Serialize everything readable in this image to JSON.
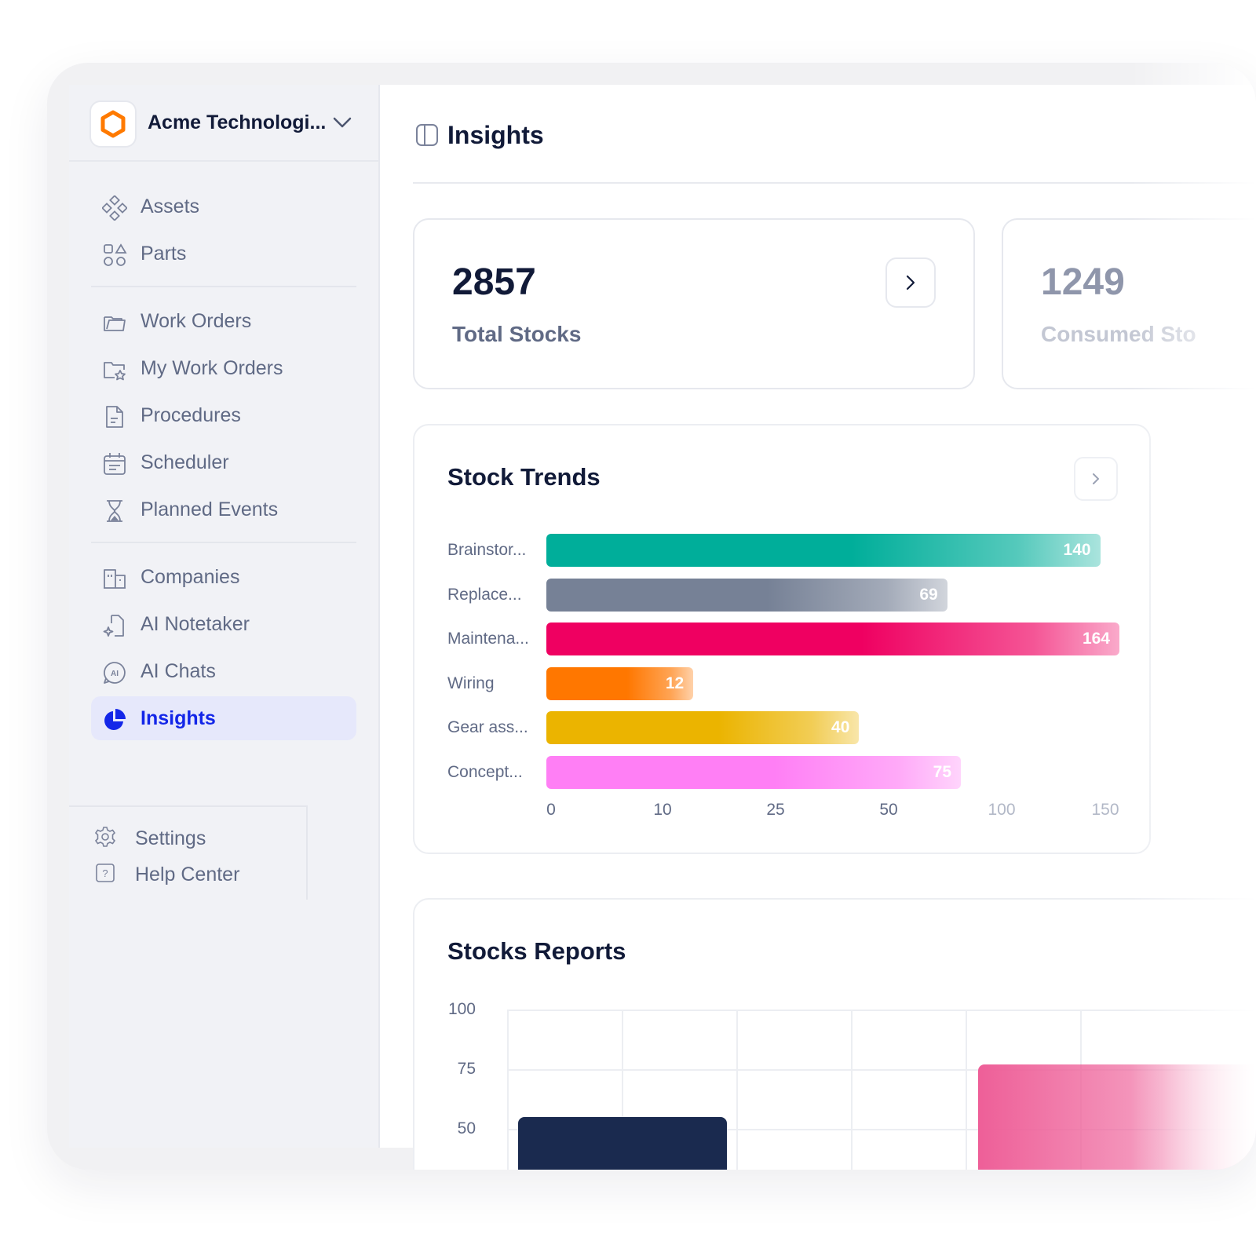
{
  "org": {
    "name": "Acme Technologi...",
    "logo_color": "#ff7a00"
  },
  "nav": {
    "group1": [
      {
        "label": "Assets",
        "icon": "diamond-grid-icon"
      },
      {
        "label": "Parts",
        "icon": "shapes-icon"
      }
    ],
    "group2": [
      {
        "label": "Work Orders",
        "icon": "folder-icon"
      },
      {
        "label": "My Work Orders",
        "icon": "folder-star-icon"
      },
      {
        "label": "Procedures",
        "icon": "document-icon"
      },
      {
        "label": "Scheduler",
        "icon": "calendar-icon"
      },
      {
        "label": "Planned Events",
        "icon": "hourglass-icon"
      }
    ],
    "group3": [
      {
        "label": "Companies",
        "icon": "building-icon"
      },
      {
        "label": "AI Notetaker",
        "icon": "ai-note-icon"
      },
      {
        "label": "AI Chats",
        "icon": "ai-chat-icon"
      },
      {
        "label": "Insights",
        "icon": "pie-chart-icon",
        "active": true
      }
    ],
    "bottom": [
      {
        "label": "Settings",
        "icon": "gear-icon"
      },
      {
        "label": "Help Center",
        "icon": "help-icon"
      }
    ]
  },
  "page": {
    "title": "Insights"
  },
  "stats": [
    {
      "value": "2857",
      "label": "Total Stocks"
    },
    {
      "value": "1249",
      "label": "Consumed Sto"
    }
  ],
  "stock_trends": {
    "title": "Stock Trends",
    "chart_data": {
      "type": "bar",
      "orientation": "horizontal",
      "categories": [
        "Brainstor...",
        "Replace...",
        "Maintena...",
        "Wiring",
        "Gear ass...",
        "Concept..."
      ],
      "values": [
        140,
        69,
        164,
        12,
        40,
        75
      ],
      "x_ticks": [
        "0",
        "10",
        "25",
        "50",
        "100",
        "150"
      ],
      "colors": [
        "#00ae9a",
        "#768196",
        "#ef0061",
        "#ff7700",
        "#ebb400",
        "#ff7ff5"
      ]
    }
  },
  "stocks_reports": {
    "title": "Stocks Reports",
    "chart_data": {
      "type": "bar",
      "y_ticks": [
        "100",
        "75",
        "50"
      ],
      "grid": true,
      "values": [
        55,
        77
      ],
      "colors": [
        "#1a2a4f",
        "#ee5f98"
      ]
    }
  }
}
